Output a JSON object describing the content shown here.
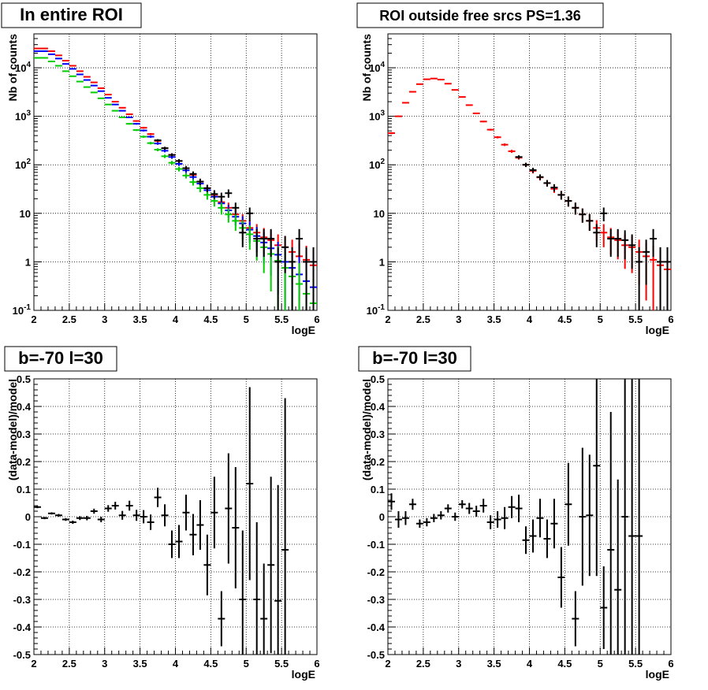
{
  "chart_data": [
    {
      "type": "scatter",
      "title": "In entire ROI",
      "xlabel": "logE",
      "ylabel": "Nb of counts",
      "xlim": [
        2,
        6
      ],
      "ylim": [
        0.1,
        50000
      ],
      "yscale": "log",
      "grid": true,
      "legend": "none",
      "x_ticks": [
        "2",
        "2.5",
        "3",
        "3.5",
        "4",
        "4.5",
        "5",
        "5.5",
        "6"
      ],
      "y_ticks": [
        "10^-1",
        "1",
        "10",
        "10^2",
        "10^3",
        "10^4"
      ],
      "series": [
        {
          "color": "#ff0000",
          "style": "error-bars",
          "x": [
            2.05,
            2.15,
            2.25,
            2.35,
            2.45,
            2.55,
            2.65,
            2.75,
            2.85,
            2.95,
            3.05,
            3.15,
            3.25,
            3.35,
            3.45,
            3.55,
            3.65,
            3.75,
            3.85,
            3.95,
            4.05,
            4.15,
            4.25,
            4.35,
            4.45,
            4.55,
            4.65,
            4.75,
            4.85,
            4.95,
            5.05,
            5.15,
            5.25,
            5.35,
            5.45,
            5.55,
            5.65,
            5.75,
            5.85,
            5.95
          ],
          "y": [
            25000,
            25000,
            22000,
            18000,
            14000,
            11000,
            8500,
            6500,
            5000,
            3800,
            2800,
            2000,
            1500,
            1100,
            800,
            580,
            430,
            310,
            220,
            160,
            120,
            85,
            62,
            45,
            33,
            24,
            17,
            13,
            9.5,
            7,
            5,
            4,
            3.2,
            2.8,
            2.2,
            2,
            1.6,
            1.3,
            1.1,
            0.85
          ]
        },
        {
          "color": "#0000ff",
          "style": "error-bars",
          "x": [
            2.05,
            2.15,
            2.25,
            2.35,
            2.45,
            2.55,
            2.65,
            2.75,
            2.85,
            2.95,
            3.05,
            3.15,
            3.25,
            3.35,
            3.45,
            3.55,
            3.65,
            3.75,
            3.85,
            3.95,
            4.05,
            4.15,
            4.25,
            4.35,
            4.45,
            4.55,
            4.65,
            4.75,
            4.85,
            4.95,
            5.05,
            5.15,
            5.25,
            5.35,
            5.45,
            5.55,
            5.65,
            5.75,
            5.85,
            5.95
          ],
          "y": [
            22000,
            22000,
            19000,
            15500,
            12000,
            9500,
            7300,
            5600,
            4300,
            3300,
            2400,
            1750,
            1300,
            950,
            700,
            510,
            380,
            275,
            195,
            145,
            105,
            77,
            56,
            41,
            30,
            22,
            16,
            11.5,
            8.5,
            6.2,
            4.6,
            3.4,
            2.5,
            1.9,
            1.4,
            1.0,
            0.75,
            0.55,
            0.4,
            0.3
          ]
        },
        {
          "color": "#00cc00",
          "style": "error-bars",
          "x": [
            2.05,
            2.15,
            2.25,
            2.35,
            2.45,
            2.55,
            2.65,
            2.75,
            2.85,
            2.95,
            3.05,
            3.15,
            3.25,
            3.35,
            3.45,
            3.55,
            3.65,
            3.75,
            3.85,
            3.95,
            4.05,
            4.15,
            4.25,
            4.35,
            4.45,
            4.55,
            4.65,
            4.75,
            4.85,
            4.95,
            5.05,
            5.15,
            5.25,
            5.35,
            5.45,
            5.55,
            5.65,
            5.75,
            5.85,
            5.95
          ],
          "y": [
            16000,
            16000,
            13500,
            11000,
            8500,
            6700,
            5200,
            4000,
            3100,
            2350,
            1750,
            1300,
            950,
            700,
            520,
            380,
            280,
            205,
            150,
            110,
            82,
            60,
            44,
            33,
            24,
            18,
            13,
            9.5,
            7,
            5,
            3.7,
            2.7,
            2.0,
            1.45,
            1.05,
            0.75,
            0.5,
            0.35,
            0.22,
            0.14
          ]
        },
        {
          "color": "#000000",
          "style": "error-bars",
          "x": [
            3.75,
            3.85,
            3.95,
            4.05,
            4.15,
            4.25,
            4.35,
            4.45,
            4.55,
            4.65,
            4.75,
            4.85,
            4.95,
            5.05,
            5.15,
            5.25,
            5.35,
            5.45,
            5.55,
            5.65,
            5.75,
            5.85,
            5.95
          ],
          "y": [
            320,
            220,
            160,
            120,
            85,
            65,
            45,
            33,
            25,
            22,
            26,
            13,
            4,
            10,
            3,
            3,
            3,
            1,
            2,
            1,
            3,
            1,
            1
          ]
        }
      ]
    },
    {
      "type": "scatter",
      "title": "ROI outside free srcs PS=1.36",
      "xlabel": "logE",
      "ylabel": "Nb of counts",
      "xlim": [
        2,
        6
      ],
      "ylim": [
        0.1,
        50000
      ],
      "yscale": "log",
      "grid": true,
      "legend": "none",
      "x_ticks": [
        "2",
        "2.5",
        "3",
        "3.5",
        "4",
        "4.5",
        "5",
        "5.5",
        "6"
      ],
      "y_ticks": [
        "10^-1",
        "1",
        "10",
        "10^2",
        "10^3",
        "10^4"
      ],
      "series": [
        {
          "color": "#ff0000",
          "style": "error-bars",
          "x": [
            2.05,
            2.15,
            2.25,
            2.35,
            2.45,
            2.55,
            2.65,
            2.75,
            2.85,
            2.95,
            3.05,
            3.15,
            3.25,
            3.35,
            3.45,
            3.55,
            3.65,
            3.75,
            3.85,
            3.95,
            4.05,
            4.15,
            4.25,
            4.35,
            4.45,
            4.55,
            4.65,
            4.75,
            4.85,
            4.95,
            5.05,
            5.15,
            5.25,
            5.35,
            5.45,
            5.55,
            5.65,
            5.75,
            5.85,
            5.95
          ],
          "y": [
            450,
            1000,
            1900,
            3200,
            4600,
            5800,
            6000,
            5700,
            4700,
            3500,
            2500,
            1700,
            1150,
            780,
            530,
            370,
            260,
            190,
            140,
            100,
            75,
            55,
            42,
            32,
            24,
            18,
            13,
            9.5,
            7,
            5,
            4,
            3.2,
            2.8,
            2.2,
            2,
            1.6,
            1.3,
            1.1,
            0.85,
            0.7
          ]
        },
        {
          "color": "#000000",
          "style": "error-bars",
          "x": [
            3.85,
            3.95,
            4.05,
            4.15,
            4.25,
            4.35,
            4.45,
            4.55,
            4.65,
            4.75,
            4.85,
            4.95,
            5.05,
            5.15,
            5.25,
            5.35,
            5.45,
            5.55,
            5.65,
            5.75,
            5.85,
            5.95
          ],
          "y": [
            145,
            100,
            78,
            56,
            42,
            34,
            24,
            18,
            13,
            9.5,
            7,
            4,
            10,
            3,
            3,
            2.8,
            2.2,
            1,
            1.6,
            3,
            1,
            1
          ]
        }
      ]
    },
    {
      "type": "scatter",
      "title": "b=-70 l=30",
      "xlabel": "logE",
      "ylabel": "(data-model)/model",
      "xlim": [
        2,
        6
      ],
      "ylim": [
        -0.5,
        0.5
      ],
      "grid": true,
      "legend": "none",
      "x_ticks": [
        "2",
        "2.5",
        "3",
        "3.5",
        "4",
        "4.5",
        "5",
        "5.5",
        "6"
      ],
      "y_ticks": [
        "-0.5",
        "-0.4",
        "-0.3",
        "-0.2",
        "-0.1",
        "0",
        "0.1",
        "0.2",
        "0.3",
        "0.4",
        "0.5"
      ],
      "series": [
        {
          "color": "#000000",
          "style": "error-bars",
          "x": [
            2.05,
            2.15,
            2.25,
            2.35,
            2.45,
            2.55,
            2.65,
            2.75,
            2.85,
            2.95,
            3.05,
            3.15,
            3.25,
            3.35,
            3.45,
            3.55,
            3.65,
            3.75,
            3.85,
            3.95,
            4.05,
            4.15,
            4.25,
            4.35,
            4.45,
            4.55,
            4.65,
            4.75,
            4.85,
            4.95,
            5.05,
            5.15,
            5.25,
            5.35,
            5.45,
            5.55
          ],
          "y": [
            0.035,
            -0.005,
            0.012,
            0.005,
            -0.01,
            -0.02,
            -0.005,
            -0.005,
            0.02,
            -0.01,
            0.03,
            0.04,
            0.005,
            0.04,
            0.005,
            0.0,
            -0.02,
            0.07,
            0.005,
            -0.1,
            -0.09,
            0.015,
            -0.065,
            -0.03,
            -0.175,
            0.015,
            -0.37,
            0.03,
            -0.04,
            -0.3,
            0.12,
            -0.3,
            -0.37,
            -0.175,
            -0.305,
            -0.12
          ],
          "err": [
            0.004,
            0.004,
            0.004,
            0.005,
            0.005,
            0.006,
            0.007,
            0.008,
            0.009,
            0.01,
            0.012,
            0.014,
            0.016,
            0.018,
            0.02,
            0.024,
            0.028,
            0.035,
            0.04,
            0.05,
            0.06,
            0.065,
            0.075,
            0.09,
            0.11,
            0.13,
            0.1,
            0.2,
            0.22,
            0.25,
            0.35,
            0.28,
            0.2,
            0.32,
            0.42,
            0.55
          ]
        }
      ]
    },
    {
      "type": "scatter",
      "title": "b=-70 l=30",
      "xlabel": "logE",
      "ylabel": "(data-model)/model",
      "xlim": [
        2,
        6
      ],
      "ylim": [
        -0.5,
        0.5
      ],
      "grid": true,
      "legend": "none",
      "x_ticks": [
        "2",
        "2.5",
        "3",
        "3.5",
        "4",
        "4.5",
        "5",
        "5.5",
        "6"
      ],
      "y_ticks": [
        "-0.5",
        "-0.4",
        "-0.3",
        "-0.2",
        "-0.1",
        "0",
        "0.1",
        "0.2",
        "0.3",
        "0.4",
        "0.5"
      ],
      "series": [
        {
          "color": "#000000",
          "style": "error-bars",
          "x": [
            2.05,
            2.15,
            2.25,
            2.35,
            2.45,
            2.55,
            2.65,
            2.75,
            2.85,
            2.95,
            3.05,
            3.15,
            3.25,
            3.35,
            3.45,
            3.55,
            3.65,
            3.75,
            3.85,
            3.95,
            4.05,
            4.15,
            4.25,
            4.35,
            4.45,
            4.55,
            4.65,
            4.75,
            4.85,
            4.95,
            5.05,
            5.15,
            5.25,
            5.35,
            5.45,
            5.55
          ],
          "y": [
            0.055,
            -0.01,
            -0.005,
            0.045,
            -0.025,
            -0.02,
            -0.005,
            0.005,
            0.03,
            0.0,
            0.045,
            0.03,
            0.02,
            0.04,
            -0.02,
            -0.01,
            -0.005,
            0.035,
            0.03,
            -0.085,
            -0.07,
            -0.005,
            -0.08,
            -0.025,
            -0.22,
            0.045,
            -0.37,
            0.0,
            0.005,
            0.185,
            -0.33,
            -0.12,
            -0.265,
            0.0,
            -0.07,
            -0.07
          ],
          "err": [
            0.03,
            0.03,
            0.025,
            0.02,
            0.015,
            0.015,
            0.015,
            0.015,
            0.015,
            0.015,
            0.015,
            0.02,
            0.02,
            0.025,
            0.025,
            0.03,
            0.04,
            0.04,
            0.05,
            0.05,
            0.06,
            0.07,
            0.07,
            0.09,
            0.11,
            0.15,
            0.1,
            0.25,
            0.22,
            0.4,
            0.15,
            0.5,
            0.4,
            0.55,
            0.7,
            0.7
          ]
        }
      ]
    }
  ]
}
